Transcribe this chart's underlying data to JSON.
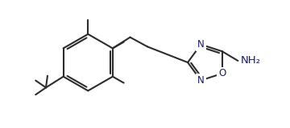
{
  "bg_color": "#ffffff",
  "line_color": "#2c2c2c",
  "text_color": "#1a1a6e",
  "line_width": 1.5,
  "font_size": 8.5,
  "NH2_label": "NH₂",
  "N_label": "N",
  "O_label": "O"
}
